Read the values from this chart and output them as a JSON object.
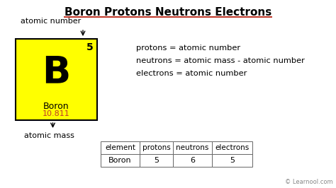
{
  "title": "Boron Protons Neutrons Electrons",
  "title_underline_color": "#c0392b",
  "bg_color": "#ffffff",
  "element_symbol": "B",
  "element_name": "Boron",
  "atomic_number": "5",
  "atomic_mass": "10.811",
  "atomic_mass_color": "#c0392b",
  "element_box_color": "#ffff00",
  "element_box_edge_color": "#000000",
  "label_atomic_number": "atomic number",
  "label_atomic_mass": "atomic mass",
  "formula_lines": [
    "protons = atomic number",
    "neutrons = atomic mass - atomic number",
    "electrons = atomic number"
  ],
  "table_headers": [
    "element",
    "protons",
    "neutrons",
    "electrons"
  ],
  "table_row": [
    "Boron",
    "5",
    "6",
    "5"
  ],
  "watermark": "© Learnool.com",
  "fig_width": 4.74,
  "fig_height": 2.66,
  "dpi": 100
}
